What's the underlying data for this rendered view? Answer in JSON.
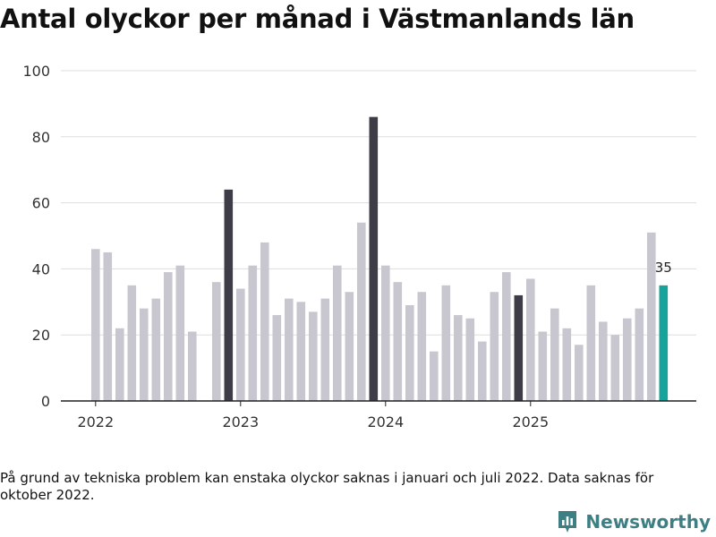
{
  "title": "Antal olyckor per månad i Västmanlands län",
  "note": "På grund av tekniska problem kan enstaka olyckor saknas i januari och juli 2022. Data saknas för oktober 2022.",
  "brand": "Newsworthy",
  "colors": {
    "normal": "#c8c7d0",
    "december": "#3d3c47",
    "latest": "#16a39a",
    "grid": "#dddddd",
    "axis": "#222222"
  },
  "chart_data": {
    "type": "bar",
    "title": "Antal olyckor per månad i Västmanlands län",
    "xlabel": "",
    "ylabel": "",
    "ylim": [
      0,
      100
    ],
    "yticks": [
      0,
      20,
      40,
      60,
      80,
      100
    ],
    "grid": true,
    "xtick_labels": [
      "2022",
      "2023",
      "2024",
      "2025"
    ],
    "categories": [
      "2022-01",
      "2022-02",
      "2022-03",
      "2022-04",
      "2022-05",
      "2022-06",
      "2022-07",
      "2022-08",
      "2022-09",
      "2022-10",
      "2022-11",
      "2022-12",
      "2023-01",
      "2023-02",
      "2023-03",
      "2023-04",
      "2023-05",
      "2023-06",
      "2023-07",
      "2023-08",
      "2023-09",
      "2023-10",
      "2023-11",
      "2023-12",
      "2024-01",
      "2024-02",
      "2024-03",
      "2024-04",
      "2024-05",
      "2024-06",
      "2024-07",
      "2024-08",
      "2024-09",
      "2024-10",
      "2024-11",
      "2024-12",
      "2025-01",
      "2025-02",
      "2025-03",
      "2025-04",
      "2025-05",
      "2025-06",
      "2025-07",
      "2025-08",
      "2025-09",
      "2025-10",
      "2025-11",
      "2025-12"
    ],
    "values": [
      46,
      45,
      22,
      35,
      28,
      31,
      39,
      41,
      21,
      null,
      36,
      64,
      34,
      41,
      48,
      26,
      31,
      30,
      27,
      31,
      41,
      33,
      54,
      86,
      41,
      36,
      29,
      33,
      15,
      35,
      26,
      25,
      18,
      33,
      39,
      32,
      37,
      21,
      28,
      22,
      17,
      35,
      24,
      20,
      25,
      28,
      51,
      35
    ],
    "highlight": {
      "december": [
        11,
        23,
        35
      ],
      "latest": 47
    },
    "data_labels": [
      {
        "index": 47,
        "text": "35"
      }
    ]
  }
}
